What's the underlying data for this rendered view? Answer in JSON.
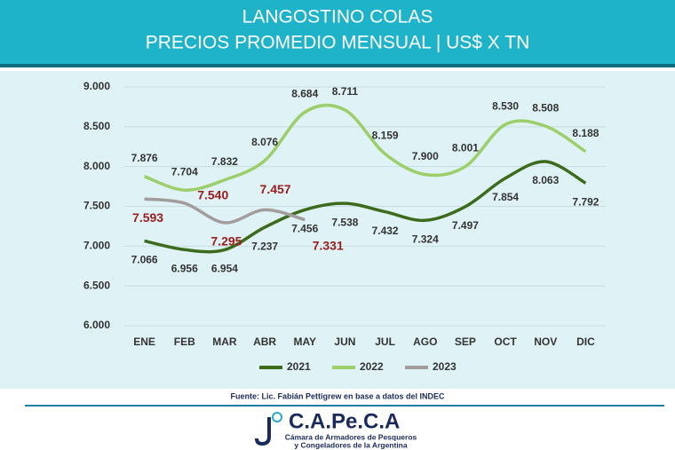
{
  "chart_data": {
    "type": "line",
    "title": "LANGOSTINO COLAS",
    "subtitle": "PRECIOS PROMEDIO MENSUAL | US$ X TN",
    "categories": [
      "ENE",
      "FEB",
      "MAR",
      "ABR",
      "MAY",
      "JUN",
      "JUL",
      "AGO",
      "SEP",
      "OCT",
      "NOV",
      "DIC"
    ],
    "series": [
      {
        "name": "2021",
        "color": "#3d6b1c",
        "values": [
          7066,
          6956,
          6954,
          7237,
          7456,
          7538,
          7432,
          7324,
          7497,
          7854,
          8063,
          7792
        ],
        "value_labels": [
          "7.066",
          "6.956",
          "6.954",
          "7.237",
          "7.456",
          "7.538",
          "7.432",
          "7.324",
          "7.497",
          "7.854",
          "8.063",
          "7.792"
        ]
      },
      {
        "name": "2022",
        "color": "#9ccf6a",
        "values": [
          7876,
          7704,
          7832,
          8076,
          8684,
          8711,
          8159,
          7900,
          8001,
          8530,
          8508,
          8188
        ],
        "value_labels": [
          "7.876",
          "7.704",
          "7.832",
          "8.076",
          "8.684",
          "8.711",
          "8.159",
          "7.900",
          "8.001",
          "8.530",
          "8.508",
          "8.188"
        ]
      },
      {
        "name": "2023",
        "color": "#a29c9c",
        "values": [
          7593,
          7540,
          7295,
          7457,
          7331,
          null,
          null,
          null,
          null,
          null,
          null,
          null
        ],
        "value_labels": [
          "7.593",
          "7.540",
          "7.295",
          "7.457",
          "7.331",
          null,
          null,
          null,
          null,
          null,
          null,
          null
        ]
      }
    ],
    "ylim": [
      6000,
      9000
    ],
    "yticks": [
      {
        "value": 6000,
        "label": "6.000"
      },
      {
        "value": 6500,
        "label": "6.500"
      },
      {
        "value": 7000,
        "label": "7.000"
      },
      {
        "value": 7500,
        "label": "7.500"
      },
      {
        "value": 8000,
        "label": "8.000"
      },
      {
        "value": 8500,
        "label": "8.500"
      },
      {
        "value": 9000,
        "label": "9.000"
      }
    ],
    "grid": true,
    "legend": "bottom",
    "source": "Fuente: Lic. Fabián Pettigrew en base a datos del INDEC"
  },
  "logo": {
    "name": "C.A.Pe.C.A",
    "line1": "Cámara de Armadores de Pesqueros",
    "line2": "y Congeladores de la Argentina"
  }
}
